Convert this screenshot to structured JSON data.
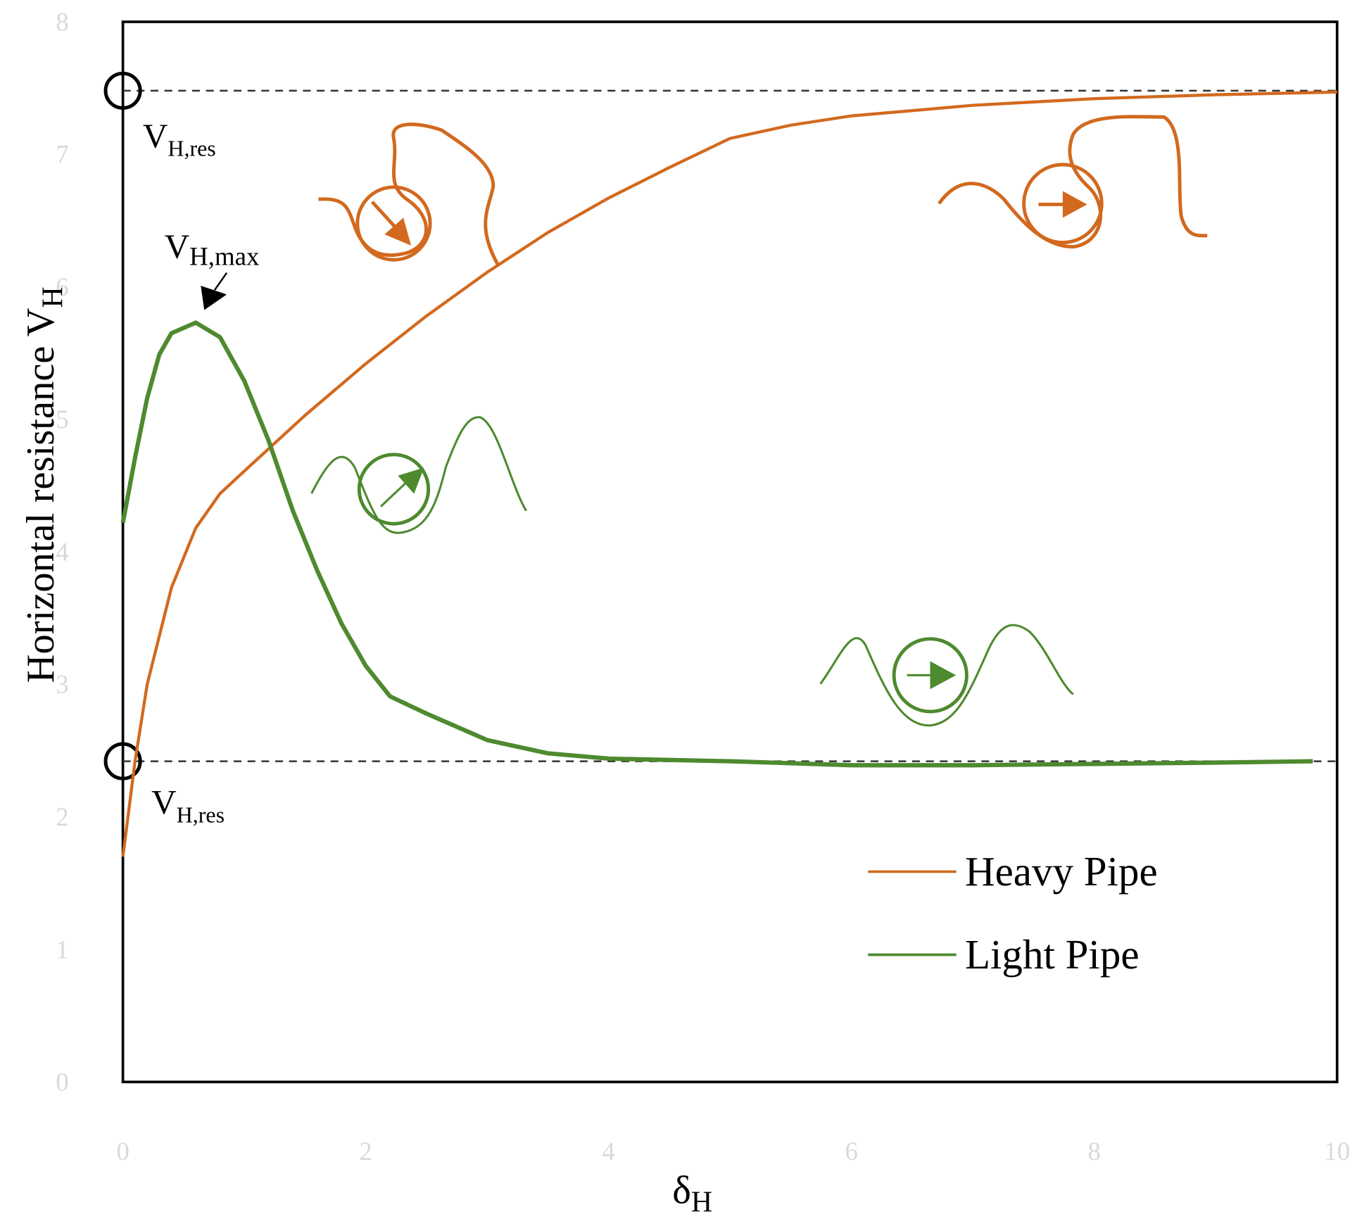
{
  "chart_data": {
    "type": "line",
    "xlabel": {
      "text": "δ",
      "sub": "H"
    },
    "ylabel": {
      "text": "Horizontal resistance V",
      "sub": "H"
    },
    "xlim": [
      0,
      10
    ],
    "ylim": [
      0,
      8
    ],
    "xticks": [
      0,
      2,
      4,
      6,
      8,
      10
    ],
    "yticks": [
      0,
      1,
      2,
      3,
      4,
      5,
      6,
      7,
      8
    ],
    "grid": false,
    "legend": "lower right",
    "reference_lines": [
      {
        "value": 7.48,
        "label": {
          "text": "V",
          "sub": "H,res"
        }
      },
      {
        "value": 2.42,
        "label": {
          "text": "V",
          "sub": "H,res"
        }
      }
    ],
    "peak_annotation": {
      "text": "V",
      "sub": "H,max"
    },
    "series": [
      {
        "name": "Heavy Pipe",
        "color": "#d2691e",
        "x": [
          0,
          0.1,
          0.2,
          0.4,
          0.6,
          0.8,
          1.0,
          1.5,
          2.0,
          2.5,
          3.0,
          3.5,
          4.0,
          4.5,
          5.0,
          5.5,
          6.0,
          7.0,
          8.0,
          9.0,
          10
        ],
        "values": [
          1.7,
          2.42,
          3.0,
          3.73,
          4.18,
          4.44,
          4.61,
          5.03,
          5.42,
          5.78,
          6.11,
          6.41,
          6.67,
          6.9,
          7.12,
          7.22,
          7.29,
          7.37,
          7.42,
          7.45,
          7.47
        ]
      },
      {
        "name": "Light Pipe",
        "color": "#4e8a2f",
        "x": [
          0,
          0.1,
          0.2,
          0.3,
          0.4,
          0.6,
          0.8,
          1.0,
          1.2,
          1.4,
          1.6,
          1.8,
          2.0,
          2.2,
          2.5,
          3.0,
          3.5,
          4.0,
          5.0,
          6.0,
          7.0,
          8.0,
          9.0,
          9.8
        ],
        "values": [
          4.22,
          4.71,
          5.16,
          5.49,
          5.65,
          5.73,
          5.62,
          5.29,
          4.84,
          4.31,
          3.86,
          3.46,
          3.14,
          2.91,
          2.78,
          2.58,
          2.48,
          2.44,
          2.42,
          2.39,
          2.39,
          2.4,
          2.41,
          2.42
        ]
      }
    ]
  }
}
